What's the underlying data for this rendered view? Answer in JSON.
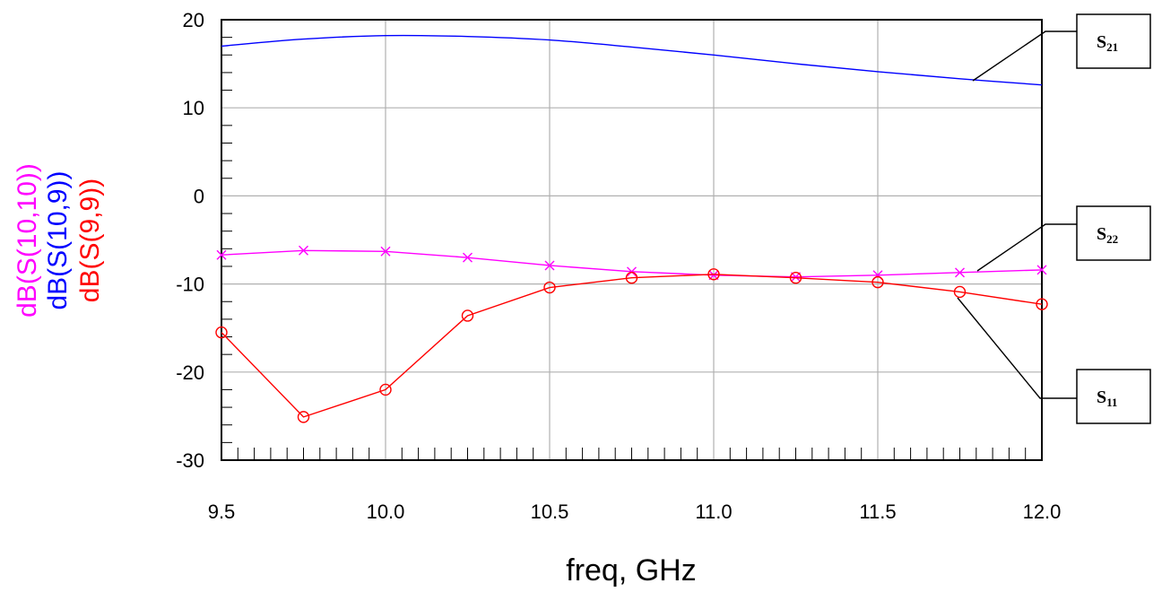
{
  "chart_data": {
    "type": "line",
    "xlabel": "freq, GHz",
    "ylabel_lines": [
      {
        "text": "dB(S(10,10))",
        "color": "#ff00ff"
      },
      {
        "text": "dB(S(10,9))",
        "color": "#0000ff"
      },
      {
        "text": "dB(S(9,9))",
        "color": "#ff0000"
      }
    ],
    "xlim": [
      9.5,
      12.0
    ],
    "ylim": [
      -30,
      20
    ],
    "x_ticks": [
      "9.5",
      "10.0",
      "10.5",
      "11.0",
      "11.5",
      "12.0"
    ],
    "y_ticks": [
      "20",
      "10",
      "0",
      "-10",
      "-20",
      "-30"
    ],
    "grid": true,
    "series": [
      {
        "name": "dB(S(10,9))",
        "color": "#0000ff",
        "marker": "none",
        "x": [
          9.5,
          9.75,
          10.0,
          10.25,
          10.5,
          10.75,
          11.0,
          11.25,
          11.5,
          11.75,
          12.0
        ],
        "values": [
          17.0,
          17.8,
          18.2,
          18.1,
          17.7,
          16.9,
          16.0,
          15.0,
          14.1,
          13.3,
          12.6
        ]
      },
      {
        "name": "dB(S(10,10))",
        "color": "#ff00ff",
        "marker": "x",
        "x": [
          9.5,
          9.75,
          10.0,
          10.25,
          10.5,
          10.75,
          11.0,
          11.25,
          11.5,
          11.75,
          12.0
        ],
        "values": [
          -6.7,
          -6.2,
          -6.3,
          -7.0,
          -7.9,
          -8.6,
          -9.0,
          -9.2,
          -9.0,
          -8.7,
          -8.4
        ]
      },
      {
        "name": "dB(S(9,9))",
        "color": "#ff0000",
        "marker": "circle",
        "x": [
          9.5,
          9.75,
          10.0,
          10.25,
          10.5,
          10.75,
          11.0,
          11.25,
          11.5,
          11.75,
          12.0
        ],
        "values": [
          -15.5,
          -25.1,
          -22.0,
          -13.6,
          -10.4,
          -9.3,
          -8.9,
          -9.3,
          -9.8,
          -10.9,
          -12.3
        ]
      }
    ],
    "annotations": [
      {
        "main": "S",
        "sub": "21"
      },
      {
        "main": "S",
        "sub": "22"
      },
      {
        "main": "S",
        "sub": "11"
      }
    ]
  }
}
